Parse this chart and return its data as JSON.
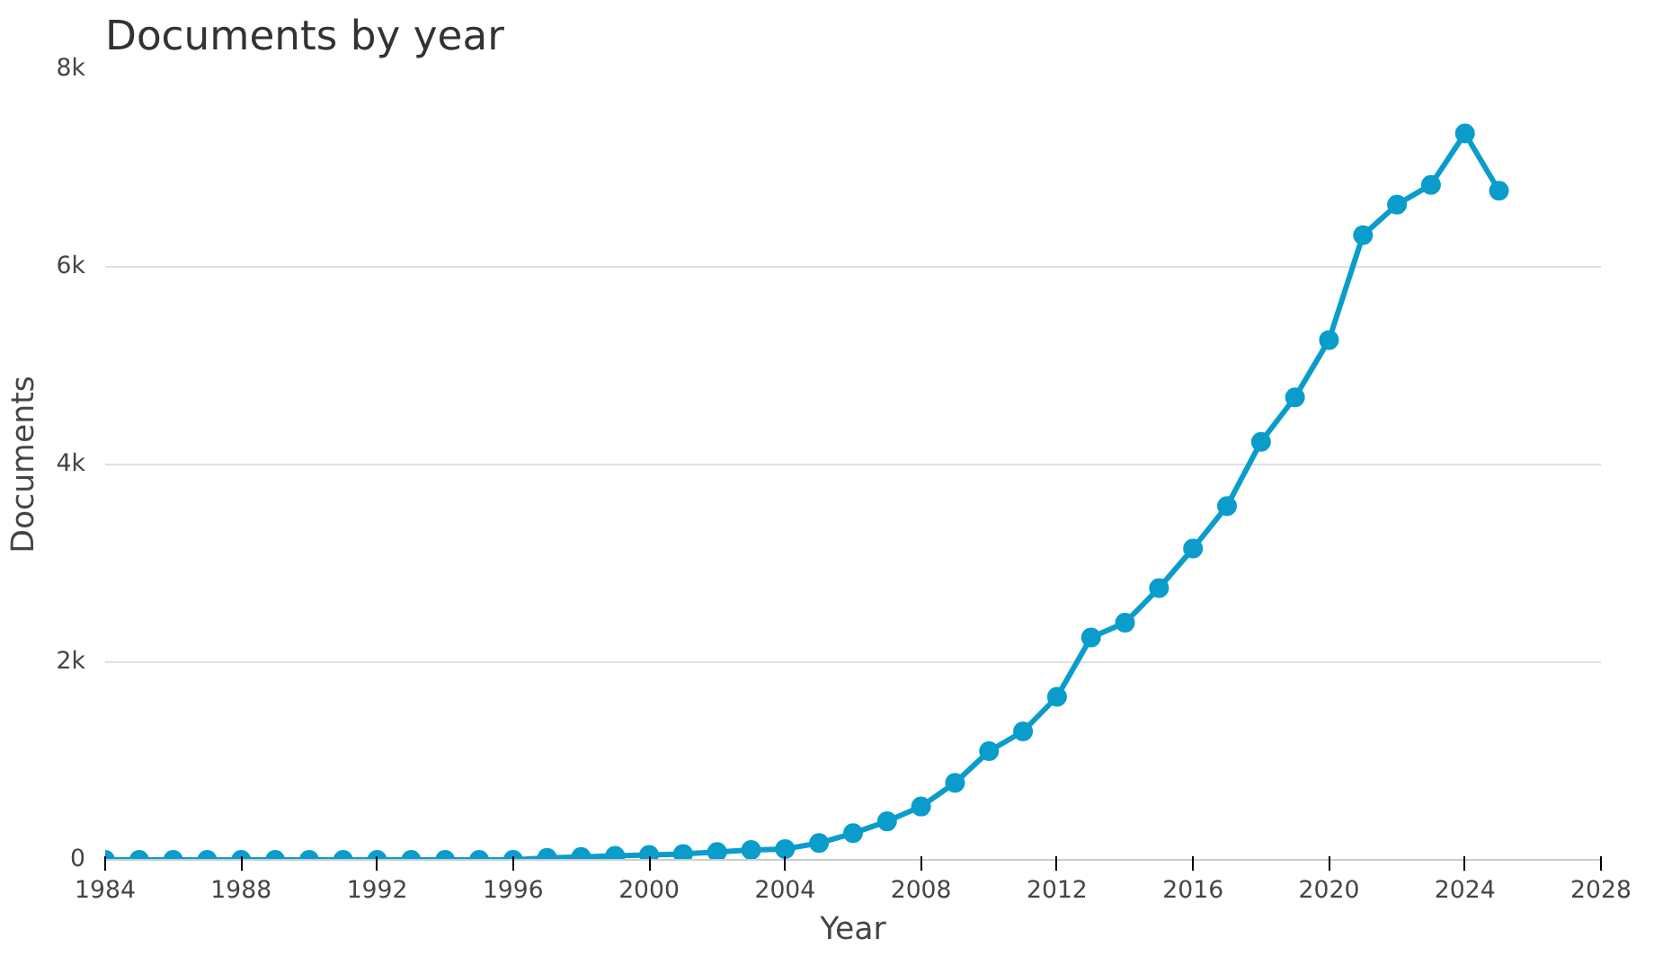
{
  "chart_data": {
    "type": "line",
    "title": "Documents by year",
    "xlabel": "Year",
    "ylabel": "Documents",
    "x": [
      1984,
      1985,
      1986,
      1987,
      1988,
      1989,
      1990,
      1991,
      1992,
      1993,
      1994,
      1995,
      1996,
      1997,
      1998,
      1999,
      2000,
      2001,
      2002,
      2003,
      2004,
      2005,
      2006,
      2007,
      2008,
      2009,
      2010,
      2011,
      2012,
      2013,
      2014,
      2015,
      2016,
      2017,
      2018,
      2019,
      2020,
      2021,
      2022,
      2023,
      2024,
      2025
    ],
    "series": [
      {
        "color": "#0a9dcb",
        "values": [
          0,
          0,
          0,
          0,
          0,
          0,
          0,
          0,
          0,
          0,
          0,
          0,
          0,
          20,
          30,
          40,
          50,
          60,
          80,
          100,
          110,
          170,
          270,
          390,
          540,
          780,
          1100,
          1300,
          1650,
          2250,
          2400,
          2750,
          3150,
          3580,
          4230,
          4680,
          5260,
          6320,
          6630,
          6830,
          7350,
          6770
        ]
      }
    ],
    "xlim": [
      1984,
      2028
    ],
    "xticks": [
      1984,
      1988,
      1992,
      1996,
      2000,
      2004,
      2008,
      2012,
      2016,
      2020,
      2024,
      2028
    ],
    "ylim": [
      0,
      8000
    ],
    "yticks": [
      {
        "value": 0,
        "label": "0"
      },
      {
        "value": 2000,
        "label": "2k"
      },
      {
        "value": 4000,
        "label": "4k"
      },
      {
        "value": 6000,
        "label": "6k"
      },
      {
        "value": 8000,
        "label": "8k"
      }
    ],
    "grid": "y",
    "marker": "circle",
    "line_style": "solid"
  }
}
